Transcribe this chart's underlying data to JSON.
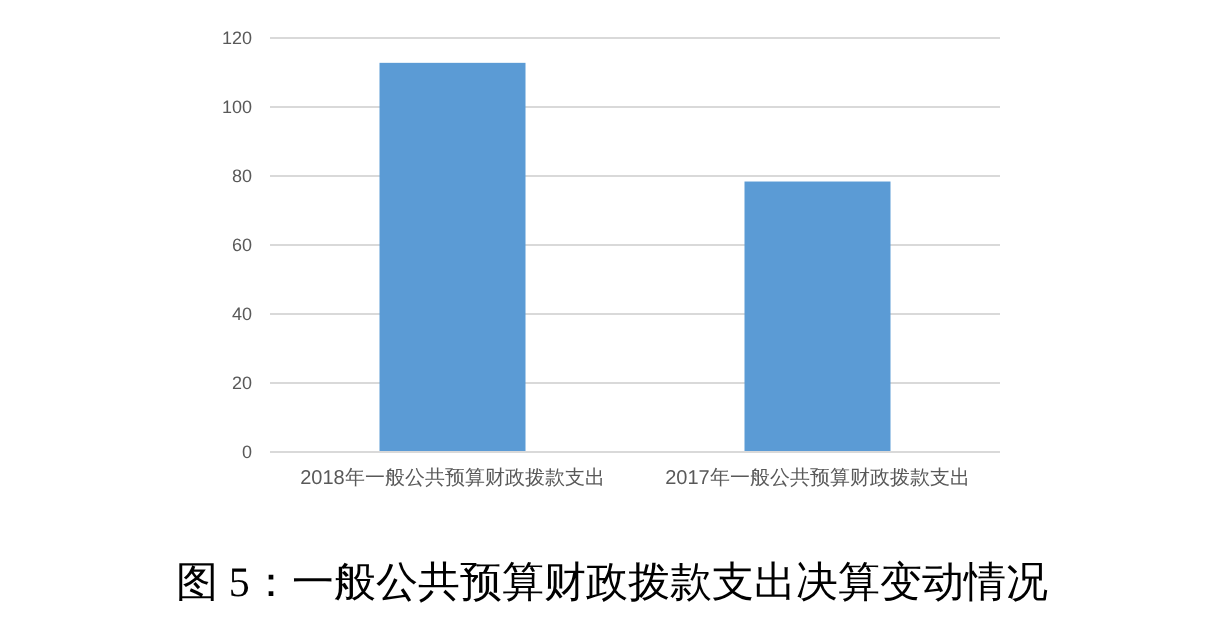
{
  "chart_data": {
    "type": "bar",
    "title": "图 5：一般公共预算财政拨款支出决算变动情况",
    "categories": [
      "2018年一般公共预算财政拨款支出",
      "2017年一般公共预算财政拨款支出"
    ],
    "values": [
      112.8,
      78.4
    ],
    "color": "#5b9bd5",
    "ylim": [
      0,
      120
    ],
    "yticks": [
      0,
      20,
      40,
      60,
      80,
      100,
      120
    ],
    "grid": "y"
  }
}
